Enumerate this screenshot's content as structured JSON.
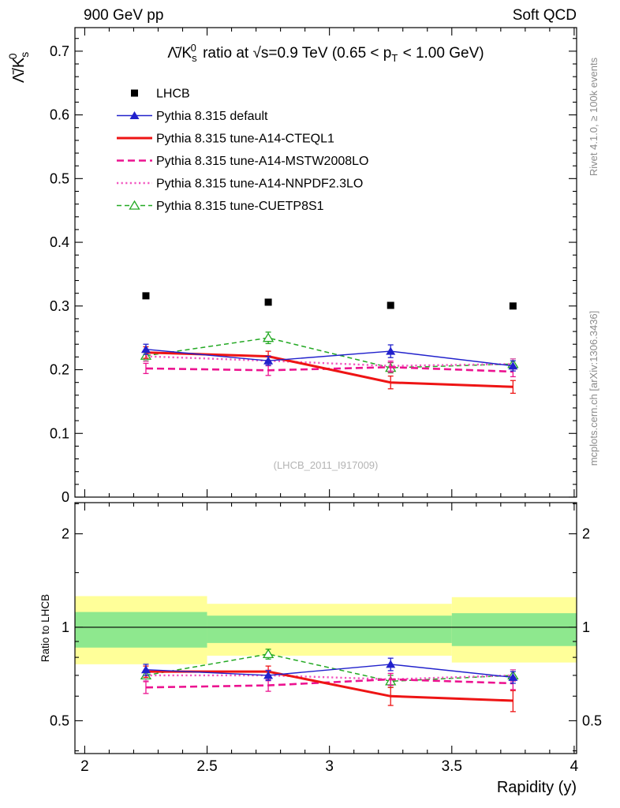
{
  "header": {
    "left": "900 GeV pp",
    "right": "Soft QCD"
  },
  "side_notes": {
    "rivet": "Rivet 4.1.0, ≥ 100k events",
    "mcplots": "mcplots.cern.ch [arXiv:1306.3436]"
  },
  "chart_data": [
    {
      "type": "line",
      "panel": "main",
      "title": "Λ̄/K0s ratio at √s=0.9 TeV (0.65 < pT < 1.00 GeV)",
      "title_parts": {
        "pre": "Λ̄/K",
        "sub": "s",
        "sup": "0",
        "mid": " ratio at √s=0.9 TeV (0.65 < p",
        "psub": "T",
        "end": " < 1.00 GeV)"
      },
      "ylabel": "Λ̄/K0s",
      "ylabel_parts": {
        "pre": "Λ̄/K",
        "sub": "s",
        "sup": "0"
      },
      "xlabel": "Rapidity (y)",
      "watermark": "(LHCB_2011_I917009)",
      "xlim": [
        1.96,
        4.01
      ],
      "ylim": [
        0,
        0.737
      ],
      "xticks": [
        2,
        2.5,
        3,
        3.5,
        4
      ],
      "yticks": [
        0,
        0.1,
        0.2,
        0.3,
        0.4,
        0.5,
        0.6,
        0.7
      ],
      "x": [
        2.25,
        2.75,
        3.25,
        3.75
      ],
      "series": [
        {
          "name": "LHCB",
          "color": "#000000",
          "line": "none",
          "width": 0,
          "marker": "square",
          "values": [
            0.316,
            0.306,
            0.301,
            0.3
          ],
          "yerr": [
            0.004,
            0.004,
            0.004,
            0.004
          ]
        },
        {
          "name": "Pythia 8.315 default",
          "color": "#2121cc",
          "line": "solid",
          "width": 1.4,
          "marker": "triangle-filled",
          "values": [
            0.232,
            0.214,
            0.229,
            0.206
          ],
          "yerr": [
            0.008,
            0.007,
            0.01,
            0.008
          ]
        },
        {
          "name": "Pythia 8.315 tune-A14-CTEQL1",
          "color": "#ee1414",
          "line": "solid",
          "width": 3,
          "marker": "none",
          "values": [
            0.227,
            0.221,
            0.18,
            0.173
          ],
          "yerr": [
            0.009,
            0.008,
            0.01,
            0.01
          ]
        },
        {
          "name": "Pythia 8.315 tune-A14-MSTW2008LO",
          "color": "#ec1390",
          "line": "dashed",
          "width": 2.6,
          "marker": "none",
          "values": [
            0.202,
            0.199,
            0.204,
            0.197
          ],
          "yerr": [
            0.008,
            0.008,
            0.008,
            0.008
          ]
        },
        {
          "name": "Pythia 8.315 tune-A14-NNPDF2.3LO",
          "color": "#f256c0",
          "line": "dotted",
          "width": 2.4,
          "marker": "none",
          "values": [
            0.221,
            0.214,
            0.206,
            0.209
          ],
          "yerr": [
            0.008,
            0.008,
            0.008,
            0.008
          ]
        },
        {
          "name": "Pythia 8.315 tune-CUETP8S1",
          "color": "#23a923",
          "line": "dashed",
          "width": 1.5,
          "marker": "triangle-open",
          "values": [
            0.222,
            0.25,
            0.203,
            0.209
          ],
          "yerr": [
            0.008,
            0.009,
            0.008,
            0.008
          ]
        }
      ]
    },
    {
      "type": "line",
      "panel": "ratio",
      "ylabel": "Ratio to LHCB",
      "yscale": "log",
      "ylim": [
        0.392,
        2.52
      ],
      "yticks": [
        0.5,
        1,
        2
      ],
      "x": [
        2.25,
        2.75,
        3.25,
        3.75
      ],
      "bands": [
        {
          "name": "yellow",
          "color": "#ffff99",
          "bins": [
            [
              1.96,
              2.5,
              0.76,
              1.26
            ],
            [
              2.5,
              3.5,
              0.81,
              1.19
            ],
            [
              3.5,
              4.01,
              0.77,
              1.25
            ]
          ]
        },
        {
          "name": "green",
          "color": "#8ee88e",
          "bins": [
            [
              1.96,
              2.5,
              0.86,
              1.12
            ],
            [
              2.5,
              3.5,
              0.89,
              1.09
            ],
            [
              3.5,
              4.01,
              0.87,
              1.11
            ]
          ]
        }
      ],
      "series": [
        {
          "name": "Pythia 8.315 default",
          "color": "#2121cc",
          "line": "solid",
          "width": 1.4,
          "marker": "triangle-filled",
          "values": [
            0.73,
            0.7,
            0.76,
            0.69
          ],
          "yerr": [
            0.03,
            0.025,
            0.035,
            0.03
          ]
        },
        {
          "name": "Pythia 8.315 tune-A14-CTEQL1",
          "color": "#ee1414",
          "line": "solid",
          "width": 3,
          "marker": "none",
          "values": [
            0.72,
            0.72,
            0.6,
            0.58
          ],
          "yerr": [
            0.03,
            0.03,
            0.04,
            0.045
          ]
        },
        {
          "name": "Pythia 8.315 tune-A14-MSTW2008LO",
          "color": "#ec1390",
          "line": "dashed",
          "width": 2.6,
          "marker": "none",
          "values": [
            0.64,
            0.65,
            0.68,
            0.66
          ],
          "yerr": [
            0.028,
            0.028,
            0.03,
            0.03
          ]
        },
        {
          "name": "Pythia 8.315 tune-A14-NNPDF2.3LO",
          "color": "#f256c0",
          "line": "dotted",
          "width": 2.4,
          "marker": "none",
          "values": [
            0.7,
            0.7,
            0.68,
            0.7
          ],
          "yerr": [
            0.028,
            0.028,
            0.03,
            0.03
          ]
        },
        {
          "name": "Pythia 8.315 tune-CUETP8S1",
          "color": "#23a923",
          "line": "dashed",
          "width": 1.5,
          "marker": "triangle-open",
          "values": [
            0.7,
            0.82,
            0.67,
            0.7
          ],
          "yerr": [
            0.028,
            0.03,
            0.03,
            0.03
          ]
        }
      ]
    }
  ]
}
